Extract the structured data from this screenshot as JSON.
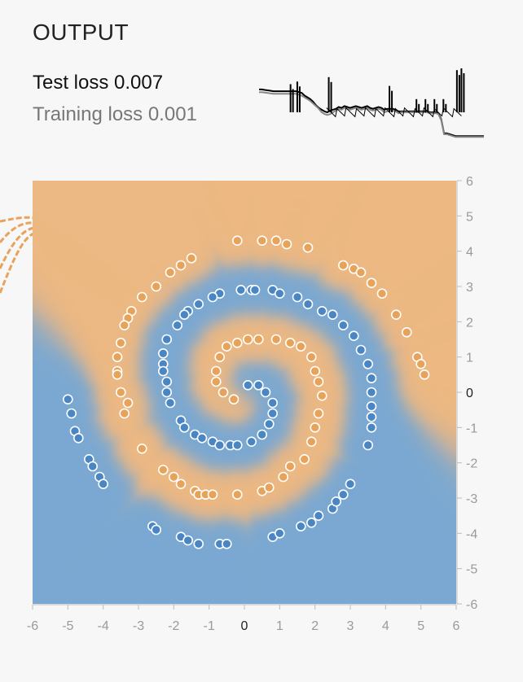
{
  "output": {
    "heading": "OUTPUT",
    "test_loss": "Test loss 0.007",
    "training_loss": "Training loss 0.001"
  },
  "colors": {
    "background": "#f7f7f7",
    "class_positive": "#e8a35a",
    "class_negative": "#4a86c4",
    "region_positive": "#edb882",
    "region_negative": "#7aa8d2",
    "test_loss_line": "#000000",
    "training_loss_line": "#888888"
  },
  "chart_data": [
    {
      "type": "line",
      "series": [
        {
          "values": [
            0.27,
            0.27,
            0.275,
            0.28,
            0.285,
            0.29,
            0.29,
            0.29,
            0.29,
            0.29,
            0.29,
            0.29,
            0.29,
            0.29,
            0.3,
            0.31,
            0.33,
            0.35,
            0.37,
            0.4,
            0.43,
            0.46,
            0.5,
            0.52,
            0.53,
            0.52,
            0.5,
            0.48,
            0.46,
            0.47,
            0.45,
            0.46,
            0.47,
            0.46,
            0.45,
            0.46,
            0.47,
            0.46,
            0.45,
            0.47,
            0.48,
            0.47,
            0.46,
            0.47,
            0.5,
            0.49,
            0.48,
            0.48,
            0.49,
            0.51,
            0.5,
            0.5,
            0.5,
            0.5,
            0.5,
            0.5,
            0.5,
            0.5,
            0.5,
            0.5,
            0.51,
            0.51,
            0.51,
            0.52,
            0.59,
            0.75,
            0.75,
            0.76,
            0.77,
            0.78,
            0.78,
            0.78,
            0.78,
            0.78,
            0.78,
            0.78,
            0.78,
            0.78,
            0.78,
            0.78
          ]
        },
        {
          "values": [
            0.24,
            0.24,
            0.245,
            0.25,
            0.255,
            0.26,
            0.26,
            0.26,
            0.26,
            0.26,
            0.26,
            0.26,
            0.26,
            0.26,
            0.27,
            0.28,
            0.31,
            0.33,
            0.35,
            0.38,
            0.42,
            0.45,
            0.47,
            0.49,
            0.5,
            0.48,
            0.47,
            0.46,
            0.44,
            0.45,
            0.43,
            0.44,
            0.45,
            0.44,
            0.43,
            0.44,
            0.45,
            0.44,
            0.43,
            0.45,
            0.46,
            0.45,
            0.44,
            0.45,
            0.47,
            0.46,
            0.46,
            0.46,
            0.47,
            0.49,
            0.49,
            0.49,
            0.49,
            0.49,
            0.49,
            0.49,
            0.49,
            0.49,
            0.49,
            0.49,
            0.5,
            0.5,
            0.5,
            0.51,
            0.58,
            0.74,
            0.74,
            0.75,
            0.76,
            0.77,
            0.77,
            0.77,
            0.77,
            0.77,
            0.77,
            0.77,
            0.77,
            0.77,
            0.77,
            0.77
          ]
        }
      ],
      "spikes": [
        {
          "at": 0.14,
          "top": 0.18
        },
        {
          "at": 0.17,
          "top": 0.15
        },
        {
          "at": 0.31,
          "top": 0.1
        },
        {
          "at": 0.58,
          "top": 0.2
        },
        {
          "at": 0.7,
          "top": 0.35
        },
        {
          "at": 0.74,
          "top": 0.35
        },
        {
          "at": 0.78,
          "top": 0.35
        },
        {
          "at": 0.82,
          "top": 0.35
        },
        {
          "at": 0.88,
          "top": 0.02
        },
        {
          "at": 0.9,
          "top": 0.0
        }
      ],
      "ylim": [
        0,
        1
      ]
    },
    {
      "type": "scatter",
      "xlim": [
        -6,
        6
      ],
      "ylim": [
        -6,
        6
      ],
      "x_ticks": [
        "-6",
        "-5",
        "-4",
        "-3",
        "-2",
        "-1",
        "0",
        "1",
        "2",
        "3",
        "4",
        "5",
        "6"
      ],
      "y_ticks": [
        "6",
        "5",
        "4",
        "3",
        "2",
        "1",
        "0",
        "-1",
        "-2",
        "-3",
        "-4",
        "-5",
        "-6"
      ],
      "series": [
        {
          "class": "positive",
          "points": [
            [
              -0.2,
              4.3
            ],
            [
              0.5,
              4.3
            ],
            [
              0.9,
              4.3
            ],
            [
              1.2,
              4.2
            ],
            [
              1.8,
              4.1
            ],
            [
              2.8,
              3.6
            ],
            [
              3.1,
              3.5
            ],
            [
              3.3,
              3.4
            ],
            [
              3.6,
              3.1
            ],
            [
              3.9,
              2.8
            ],
            [
              4.3,
              2.2
            ],
            [
              4.6,
              1.7
            ],
            [
              4.9,
              1.0
            ],
            [
              5.0,
              0.8
            ],
            [
              5.1,
              0.5
            ],
            [
              -1.5,
              3.8
            ],
            [
              -1.8,
              3.6
            ],
            [
              -2.1,
              3.4
            ],
            [
              -2.5,
              3.0
            ],
            [
              -2.9,
              2.7
            ],
            [
              -3.2,
              2.3
            ],
            [
              -3.3,
              2.1
            ],
            [
              -3.4,
              1.9
            ],
            [
              -3.5,
              1.4
            ],
            [
              -3.6,
              1.0
            ],
            [
              -3.6,
              0.6
            ],
            [
              -3.6,
              0.5
            ],
            [
              -3.5,
              0.0
            ],
            [
              -3.3,
              -0.3
            ],
            [
              -3.4,
              -0.6
            ],
            [
              -2.9,
              -1.6
            ],
            [
              -2.3,
              -2.2
            ],
            [
              -2.0,
              -2.4
            ],
            [
              -1.8,
              -2.6
            ],
            [
              -1.4,
              -2.8
            ],
            [
              -1.3,
              -2.9
            ],
            [
              -1.1,
              -2.9
            ],
            [
              -0.9,
              -2.9
            ],
            [
              -0.2,
              -2.9
            ],
            [
              0.5,
              -2.8
            ],
            [
              0.7,
              -2.7
            ],
            [
              1.1,
              -2.4
            ],
            [
              1.3,
              -2.1
            ],
            [
              1.7,
              -1.9
            ],
            [
              1.9,
              -1.4
            ],
            [
              2.0,
              -1.0
            ],
            [
              2.1,
              -0.6
            ],
            [
              2.2,
              -0.1
            ],
            [
              2.1,
              0.3
            ],
            [
              2.0,
              0.6
            ],
            [
              1.9,
              1.0
            ],
            [
              1.6,
              1.3
            ],
            [
              1.3,
              1.4
            ],
            [
              0.9,
              1.5
            ],
            [
              0.4,
              1.5
            ],
            [
              0.1,
              1.5
            ],
            [
              -0.2,
              1.4
            ],
            [
              -0.5,
              1.3
            ],
            [
              -0.7,
              1.0
            ],
            [
              -0.8,
              0.6
            ],
            [
              -0.8,
              0.3
            ],
            [
              -0.6,
              0.0
            ],
            [
              -0.3,
              -0.2
            ]
          ]
        },
        {
          "class": "negative",
          "points": [
            [
              -0.1,
              2.9
            ],
            [
              0.2,
              2.9
            ],
            [
              0.3,
              2.9
            ],
            [
              0.8,
              2.9
            ],
            [
              1.0,
              2.8
            ],
            [
              1.5,
              2.7
            ],
            [
              1.8,
              2.5
            ],
            [
              2.2,
              2.3
            ],
            [
              2.5,
              2.2
            ],
            [
              2.8,
              1.9
            ],
            [
              3.1,
              1.6
            ],
            [
              3.3,
              1.2
            ],
            [
              3.5,
              0.8
            ],
            [
              3.6,
              0.4
            ],
            [
              3.6,
              0.0
            ],
            [
              3.6,
              -0.4
            ],
            [
              3.6,
              -0.7
            ],
            [
              3.6,
              -1.0
            ],
            [
              3.5,
              -1.5
            ],
            [
              -0.7,
              2.8
            ],
            [
              -0.9,
              2.7
            ],
            [
              -1.3,
              2.5
            ],
            [
              -1.6,
              2.3
            ],
            [
              -1.7,
              2.2
            ],
            [
              -1.9,
              1.9
            ],
            [
              -2.2,
              1.5
            ],
            [
              -2.3,
              1.1
            ],
            [
              -2.3,
              0.8
            ],
            [
              -2.3,
              0.6
            ],
            [
              -2.2,
              0.3
            ],
            [
              -2.2,
              0.0
            ],
            [
              -2.1,
              -0.3
            ],
            [
              -1.8,
              -0.8
            ],
            [
              -1.7,
              -1.0
            ],
            [
              -1.4,
              -1.2
            ],
            [
              -1.2,
              -1.3
            ],
            [
              -0.9,
              -1.4
            ],
            [
              -0.7,
              -1.5
            ],
            [
              -0.4,
              -1.5
            ],
            [
              -0.2,
              -1.5
            ],
            [
              0.2,
              -1.4
            ],
            [
              0.5,
              -1.2
            ],
            [
              0.7,
              -0.9
            ],
            [
              0.8,
              -0.6
            ],
            [
              0.8,
              -0.3
            ],
            [
              0.6,
              0.0
            ],
            [
              0.4,
              0.2
            ],
            [
              0.1,
              0.2
            ],
            [
              -5.0,
              -0.2
            ],
            [
              -4.9,
              -0.6
            ],
            [
              -4.8,
              -1.1
            ],
            [
              -4.7,
              -1.3
            ],
            [
              -4.4,
              -1.9
            ],
            [
              -4.3,
              -2.1
            ],
            [
              -4.1,
              -2.4
            ],
            [
              -4.0,
              -2.6
            ],
            [
              -2.6,
              -3.8
            ],
            [
              -2.5,
              -3.9
            ],
            [
              -1.8,
              -4.1
            ],
            [
              -1.6,
              -4.2
            ],
            [
              -1.3,
              -4.3
            ],
            [
              -0.7,
              -4.3
            ],
            [
              -0.5,
              -4.3
            ],
            [
              0.8,
              -4.1
            ],
            [
              1.0,
              -4.0
            ],
            [
              1.6,
              -3.8
            ],
            [
              1.9,
              -3.7
            ],
            [
              2.1,
              -3.5
            ],
            [
              2.5,
              -3.3
            ],
            [
              2.6,
              -3.1
            ],
            [
              2.8,
              -2.9
            ],
            [
              3.0,
              -2.6
            ]
          ]
        }
      ]
    }
  ]
}
